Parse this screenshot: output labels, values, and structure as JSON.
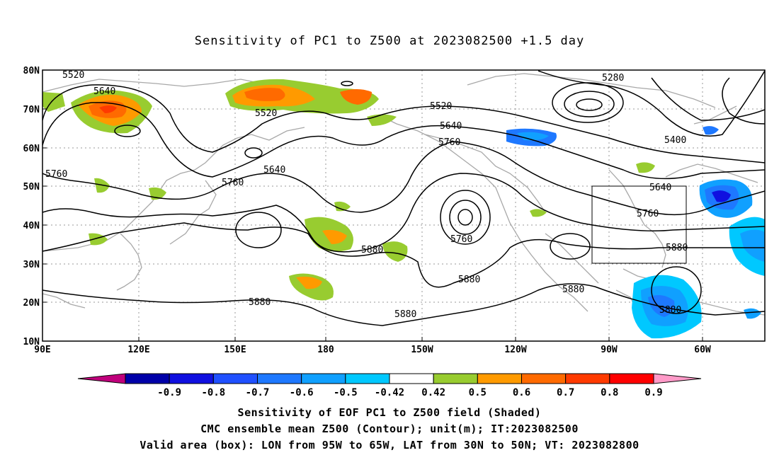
{
  "title": "Sensitivity of PC1 to Z500 at 2023082500 +1.5 day",
  "map": {
    "lat_labels": [
      "80N",
      "70N",
      "60N",
      "50N",
      "40N",
      "30N",
      "20N",
      "10N"
    ],
    "lon_labels": [
      "90E",
      "120E",
      "150E",
      "180",
      "150W",
      "120W",
      "90W",
      "60W"
    ],
    "contour_labels": [
      "5520",
      "5640",
      "5520",
      "5520",
      "5640",
      "5760",
      "5760",
      "5640",
      "5760",
      "5280",
      "5400",
      "5640",
      "5760",
      "5880",
      "5760",
      "5880",
      "5880",
      "5880",
      "5880",
      "5880",
      "5880"
    ],
    "colors": {
      "coast": "#a8a8a8",
      "grid": "#999999",
      "contour": "#000000"
    }
  },
  "colorbar": {
    "ticks": [
      "-0.9",
      "-0.8",
      "-0.7",
      "-0.6",
      "-0.5",
      "-0.42",
      "0.42",
      "0.5",
      "0.6",
      "0.7",
      "0.8",
      "0.9"
    ],
    "colors": [
      "#c0007c",
      "#0000a8",
      "#1010e0",
      "#2050ff",
      "#1e78ff",
      "#10a0ff",
      "#00c8ff",
      "#ffffff",
      "#98cc30",
      "#ff9a00",
      "#ff6a00",
      "#ff3a00",
      "#ff0000",
      "#ff9ac8"
    ]
  },
  "captions": [
    "Sensitivity of EOF PC1 to Z500 field (Shaded)",
    "CMC ensemble mean Z500 (Contour); unit(m); IT:2023082500",
    "Valid area (box): LON from 95W to 65W, LAT from 30N to 50N; VT: 2023082800"
  ]
}
